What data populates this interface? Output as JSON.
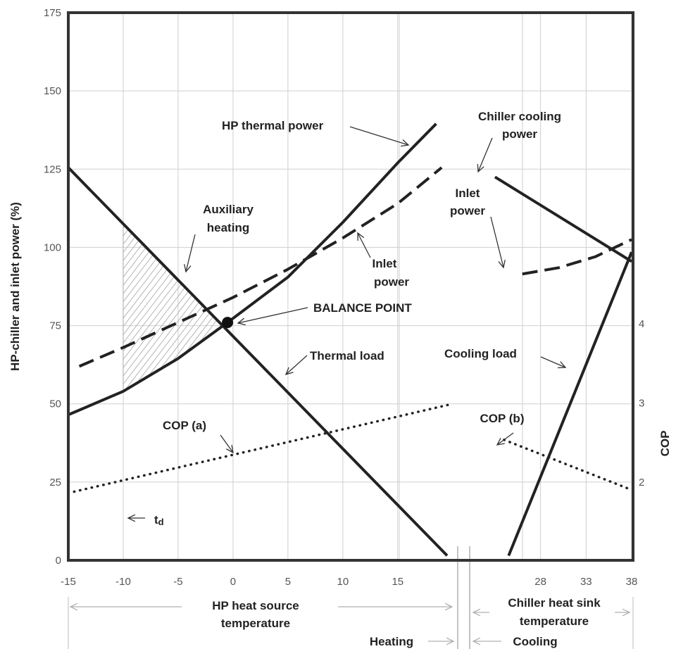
{
  "chart_data": {
    "type": "line",
    "ylabel": "HP-chiller and inlet power  (%)",
    "y2label": "COP",
    "ylim": [
      0,
      175
    ],
    "yticks": [
      "0",
      "25",
      "50",
      "75",
      "100",
      "125",
      "150",
      "175"
    ],
    "y2ticks": [
      "2",
      "3",
      "4"
    ],
    "y2tick_values": [
      2,
      3,
      4
    ],
    "heating": {
      "xlim": [
        -15,
        19.5
      ],
      "xticks": [
        "-15",
        "-10",
        "-5",
        "0",
        "5",
        "10",
        "15"
      ],
      "xtick_values": [
        -15,
        -10,
        -5,
        0,
        5,
        10,
        15
      ]
    },
    "cooling": {
      "xlim": [
        22,
        38
      ],
      "xticks": [
        "28",
        "33",
        "38"
      ],
      "xtick_values": [
        28,
        33,
        38
      ]
    },
    "series": [
      {
        "name": "HP thermal power",
        "section": "heating",
        "style": "solid",
        "x": [
          -15,
          -10,
          -5,
          -0.5,
          5,
          10,
          15,
          18.5
        ],
        "y": [
          46.5,
          54,
          64.5,
          76,
          90.5,
          108,
          127,
          139.5
        ]
      },
      {
        "name": "Inlet power",
        "section": "heating",
        "style": "dashed",
        "x": [
          -14,
          -10,
          -5,
          0,
          5,
          10,
          15,
          19
        ],
        "y": [
          62,
          68,
          76,
          84,
          93,
          103,
          114,
          125.5
        ]
      },
      {
        "name": "Thermal load",
        "section": "heating",
        "style": "solid",
        "x": [
          -15,
          19.5
        ],
        "y": [
          125.5,
          1.5
        ]
      },
      {
        "name": "COP (a)",
        "section": "heating",
        "style": "dotted",
        "x": [
          -15,
          20
        ],
        "y": [
          21.5,
          50
        ]
      },
      {
        "name": "Chiller cooling power",
        "section": "cooling",
        "style": "solid",
        "x": [
          23,
          38
        ],
        "y": [
          122.5,
          95.5
        ]
      },
      {
        "name": "Inlet power",
        "section": "cooling",
        "style": "dashed",
        "x": [
          26,
          30,
          34,
          38
        ],
        "y": [
          91.5,
          93.5,
          97,
          102.5
        ]
      },
      {
        "name": "Cooling load",
        "section": "cooling",
        "style": "solid",
        "x": [
          24.5,
          38
        ],
        "y": [
          1.5,
          98.5
        ]
      },
      {
        "name": "COP (b)",
        "section": "cooling",
        "style": "dotted",
        "x": [
          24,
          38
        ],
        "y": [
          38.5,
          22.5
        ]
      }
    ],
    "balance_point": {
      "label": "BALANCE POINT",
      "x": -0.5,
      "y": 76
    },
    "shaded_region": {
      "label": "Auxiliary heating",
      "x_from": -10,
      "x_to": -1.5
    },
    "annotations": [
      {
        "key": "hp_thermal",
        "text": "HP thermal power"
      },
      {
        "key": "chiller_power_1",
        "text": "Chiller cooling"
      },
      {
        "key": "chiller_power_2",
        "text": "power"
      },
      {
        "key": "inlet_cool_1",
        "text": "Inlet"
      },
      {
        "key": "inlet_cool_2",
        "text": "power"
      },
      {
        "key": "aux_1",
        "text": "Auxiliary"
      },
      {
        "key": "aux_2",
        "text": "heating"
      },
      {
        "key": "inlet_heat_1",
        "text": "Inlet"
      },
      {
        "key": "inlet_heat_2",
        "text": "power"
      },
      {
        "key": "balance",
        "text": "BALANCE POINT"
      },
      {
        "key": "thermal_load",
        "text": "Thermal load"
      },
      {
        "key": "cooling_load",
        "text": "Cooling load"
      },
      {
        "key": "cop_a",
        "text": "COP (a)"
      },
      {
        "key": "cop_b",
        "text": "COP (b)"
      }
    ],
    "td_label": {
      "t": "t",
      "sub": "d"
    },
    "bottom_labels": {
      "hp_source_1": "HP heat source",
      "hp_source_2": "temperature",
      "chiller_sink_1": "Chiller heat sink",
      "chiller_sink_2": "temperature",
      "heating": "Heating",
      "cooling": "Cooling"
    },
    "grid": true
  }
}
